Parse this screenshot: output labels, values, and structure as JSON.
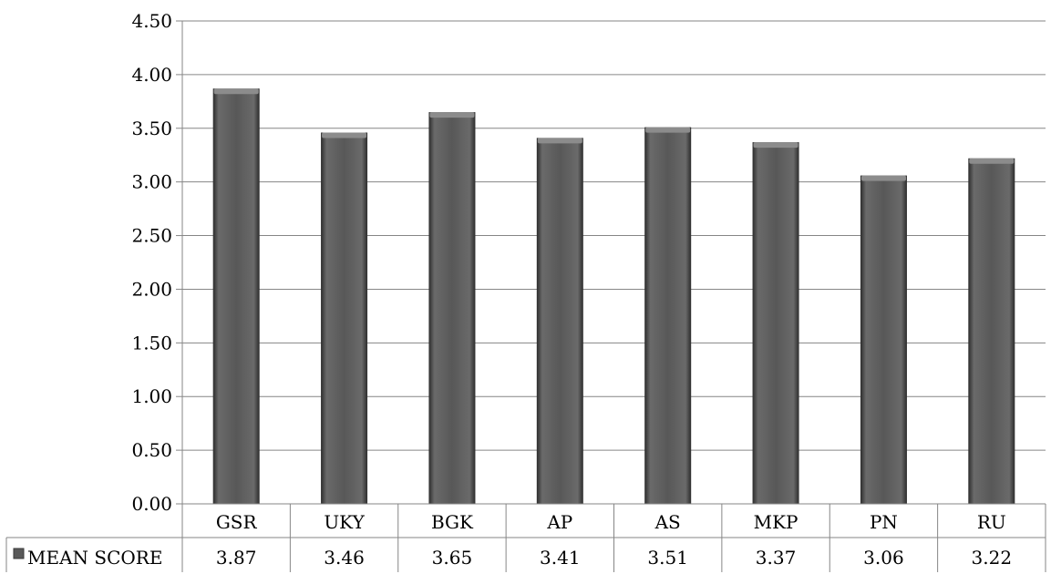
{
  "chart_data": {
    "type": "bar",
    "categories": [
      "GSR",
      "UKY",
      "BGK",
      "AP",
      "AS",
      "MKP",
      "PN",
      "RU"
    ],
    "series": [
      {
        "name": "MEAN SCORE",
        "values": [
          3.87,
          3.46,
          3.65,
          3.41,
          3.51,
          3.37,
          3.06,
          3.22
        ]
      }
    ],
    "value_labels": [
      "3.87",
      "3.46",
      "3.65",
      "3.41",
      "3.51",
      "3.37",
      "3.06",
      "3.22"
    ],
    "ylim": [
      0,
      4.5
    ],
    "yticks": [
      "0.00",
      "0.50",
      "1.00",
      "1.50",
      "2.00",
      "2.50",
      "3.00",
      "3.50",
      "4.00",
      "4.50"
    ],
    "grid": true,
    "legend": "data-table",
    "bar_color": "#595959"
  }
}
